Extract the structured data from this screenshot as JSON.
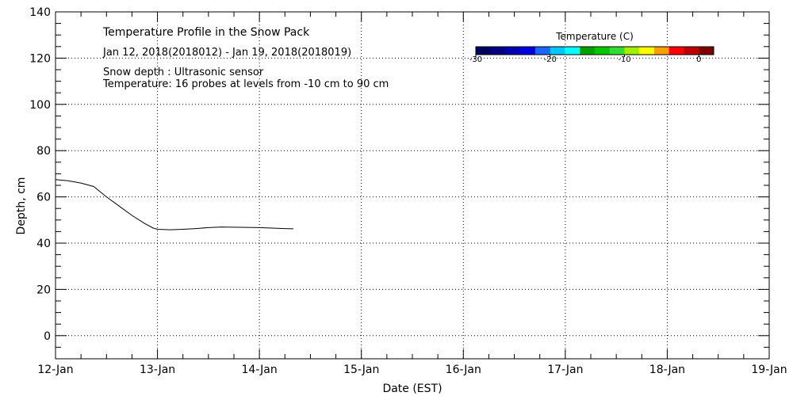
{
  "chart_data": {
    "type": "line",
    "title": "Temperature Profile in the Snow Pack",
    "subtitle": "Jan 12, 2018(2018012) - Jan 19, 2018(2018019)",
    "annotations": [
      "Snow depth : Ultrasonic sensor",
      "Temperature: 16 probes at levels from -10 cm to 90 cm"
    ],
    "xlabel": "Date (EST)",
    "ylabel": "Depth, cm",
    "xlim": [
      "2018-01-12T00:00",
      "2018-01-19T00:00"
    ],
    "ylim": [
      -10,
      140
    ],
    "x_tick_labels": [
      "12-Jan",
      "13-Jan",
      "14-Jan",
      "15-Jan",
      "16-Jan",
      "17-Jan",
      "18-Jan",
      "19-Jan"
    ],
    "y_ticks": [
      0,
      20,
      40,
      60,
      80,
      100,
      120,
      140
    ],
    "grid": true,
    "colorbar": {
      "title": "Temperature (C)",
      "tick_labels": [
        "-30",
        "-20",
        "-10",
        "0"
      ],
      "range": [
        -30,
        2
      ],
      "colors": [
        "#000060",
        "#000080",
        "#0000b0",
        "#0000e0",
        "#1e64ff",
        "#00c8ff",
        "#00ffff",
        "#00a000",
        "#00c800",
        "#32dc32",
        "#a0f000",
        "#ffff00",
        "#ffa000",
        "#ff0000",
        "#c00000",
        "#800000"
      ]
    },
    "series": [
      {
        "line_color": "#000000",
        "x": [
          "2018-01-12T00:00",
          "2018-01-12T03:00",
          "2018-01-12T06:00",
          "2018-01-12T09:00",
          "2018-01-12T12:00",
          "2018-01-12T15:00",
          "2018-01-12T18:00",
          "2018-01-12T21:00",
          "2018-01-12T23:00",
          "2018-01-13T00:00",
          "2018-01-13T03:00",
          "2018-01-13T06:00",
          "2018-01-13T09:00",
          "2018-01-13T12:00",
          "2018-01-13T15:00",
          "2018-01-13T18:00",
          "2018-01-13T21:00",
          "2018-01-14T00:00",
          "2018-01-14T03:00",
          "2018-01-14T06:00",
          "2018-01-14T08:00"
        ],
        "y": [
          67.5,
          67.0,
          66.0,
          64.5,
          60.0,
          56.0,
          52.0,
          48.5,
          46.5,
          46.0,
          45.8,
          46.0,
          46.3,
          46.7,
          47.0,
          46.9,
          46.8,
          46.7,
          46.5,
          46.3,
          46.2
        ]
      }
    ]
  }
}
